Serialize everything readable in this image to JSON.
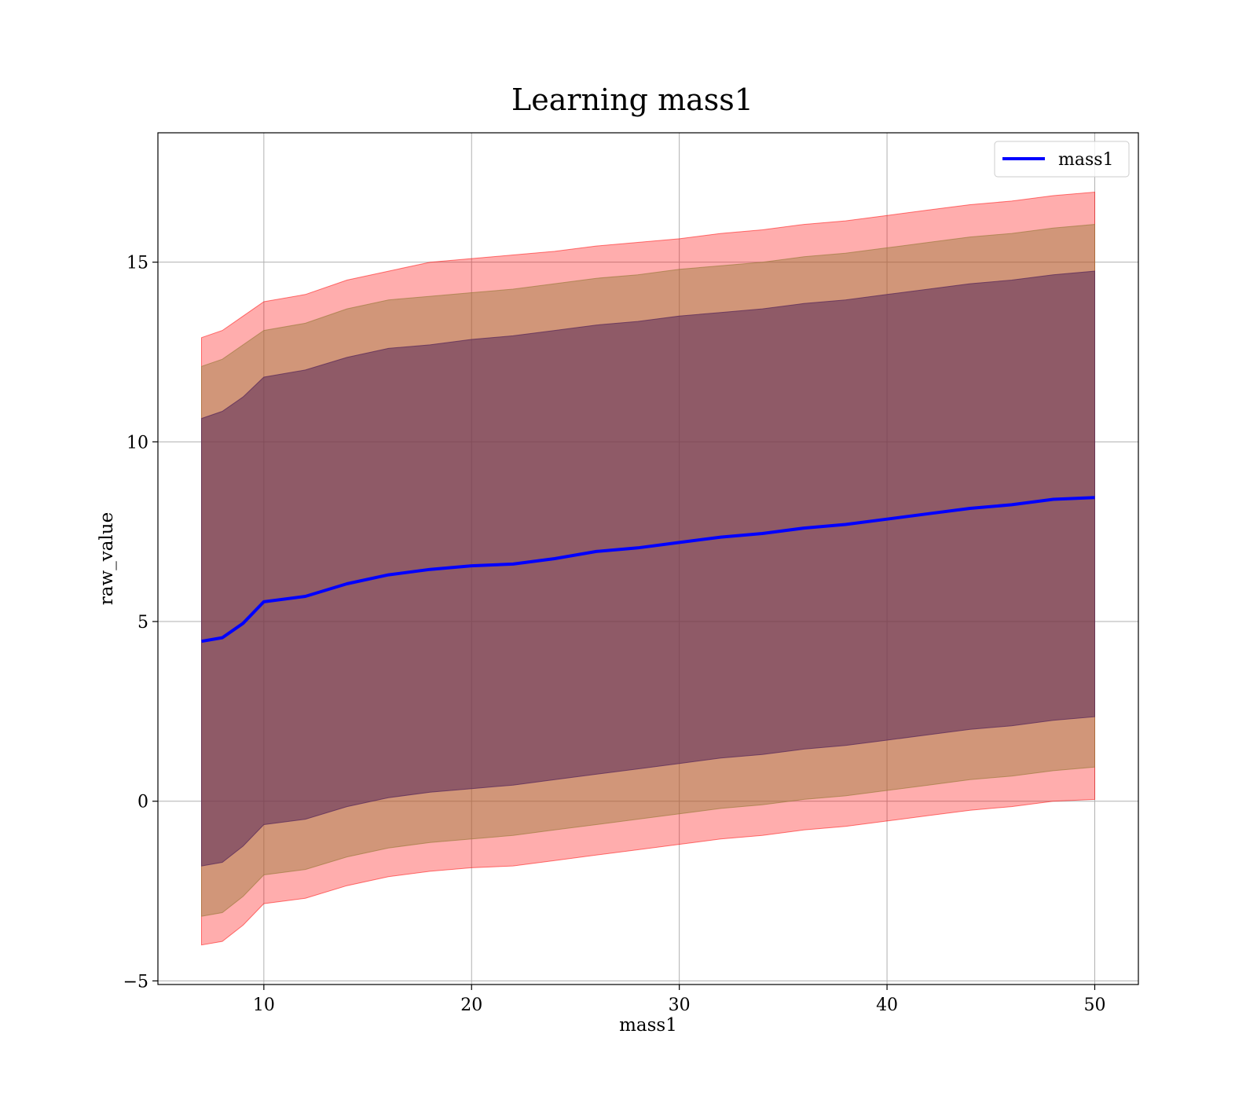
{
  "chart_data": {
    "type": "area",
    "title": "Learning mass1",
    "xlabel": "mass1",
    "ylabel": "raw_value",
    "xlim": [
      4.9,
      52.1
    ],
    "ylim": [
      -5.1,
      18.6
    ],
    "x_ticks": [
      10,
      20,
      30,
      40,
      50
    ],
    "y_ticks": [
      -5,
      0,
      5,
      10,
      15
    ],
    "x_tick_labels": [
      "10",
      "20",
      "30",
      "40",
      "50"
    ],
    "y_tick_labels": [
      "−5",
      "0",
      "5",
      "10",
      "15"
    ],
    "grid": true,
    "legend": {
      "position": "top-right",
      "entries": [
        "mass1"
      ]
    },
    "x": [
      7,
      8,
      9,
      10,
      12,
      14,
      16,
      18,
      20,
      22,
      24,
      26,
      28,
      30,
      32,
      34,
      36,
      38,
      40,
      42,
      44,
      46,
      48,
      50
    ],
    "series": [
      {
        "name": "mass1",
        "color": "#0000ff",
        "values": [
          4.45,
          4.55,
          4.95,
          5.55,
          5.7,
          6.05,
          6.3,
          6.45,
          6.55,
          6.6,
          6.75,
          6.95,
          7.05,
          7.2,
          7.35,
          7.45,
          7.6,
          7.7,
          7.85,
          8.0,
          8.15,
          8.25,
          8.4,
          8.45
        ]
      }
    ],
    "bands": [
      {
        "color": "#ff0000",
        "opacity": 0.32,
        "upper": [
          12.9,
          13.1,
          13.5,
          13.9,
          14.1,
          14.5,
          14.75,
          15.0,
          15.1,
          15.2,
          15.3,
          15.45,
          15.55,
          15.65,
          15.8,
          15.9,
          16.05,
          16.15,
          16.3,
          16.45,
          16.6,
          16.7,
          16.85,
          16.95
        ],
        "lower": [
          -4.0,
          -3.9,
          -3.45,
          -2.85,
          -2.7,
          -2.35,
          -2.1,
          -1.95,
          -1.85,
          -1.8,
          -1.65,
          -1.5,
          -1.35,
          -1.2,
          -1.05,
          -0.95,
          -0.8,
          -0.7,
          -0.55,
          -0.4,
          -0.25,
          -0.15,
          0.0,
          0.05
        ]
      },
      {
        "color": "#9a7a3a",
        "opacity": 0.45,
        "upper": [
          12.1,
          12.3,
          12.7,
          13.1,
          13.3,
          13.7,
          13.95,
          14.05,
          14.15,
          14.25,
          14.4,
          14.55,
          14.65,
          14.8,
          14.9,
          15.0,
          15.15,
          15.25,
          15.4,
          15.55,
          15.7,
          15.8,
          15.95,
          16.05
        ],
        "lower": [
          -3.2,
          -3.1,
          -2.65,
          -2.05,
          -1.9,
          -1.55,
          -1.3,
          -1.15,
          -1.05,
          -0.95,
          -0.8,
          -0.65,
          -0.5,
          -0.35,
          -0.2,
          -0.1,
          0.05,
          0.15,
          0.3,
          0.45,
          0.6,
          0.7,
          0.85,
          0.95
        ]
      },
      {
        "color": "#5a2a5a",
        "opacity": 0.55,
        "upper": [
          10.65,
          10.85,
          11.25,
          11.8,
          12.0,
          12.35,
          12.6,
          12.7,
          12.85,
          12.95,
          13.1,
          13.25,
          13.35,
          13.5,
          13.6,
          13.7,
          13.85,
          13.95,
          14.1,
          14.25,
          14.4,
          14.5,
          14.65,
          14.75
        ],
        "lower": [
          -1.8,
          -1.7,
          -1.25,
          -0.65,
          -0.5,
          -0.15,
          0.1,
          0.25,
          0.35,
          0.45,
          0.6,
          0.75,
          0.9,
          1.05,
          1.2,
          1.3,
          1.45,
          1.55,
          1.7,
          1.85,
          2.0,
          2.1,
          2.25,
          2.35
        ]
      }
    ]
  }
}
